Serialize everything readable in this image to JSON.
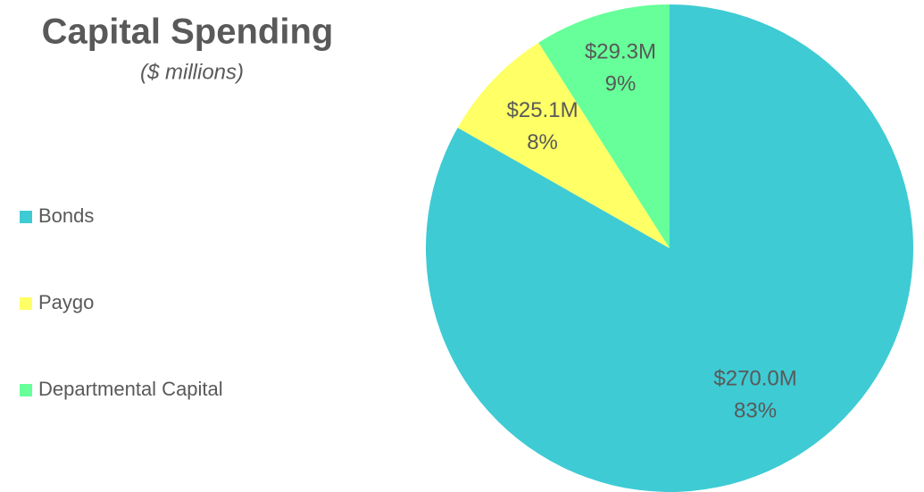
{
  "chart_data": {
    "type": "pie",
    "title": "Capital Spending",
    "subtitle": "($ millions)",
    "categories": [
      "Bonds",
      "Paygo",
      "Departmental Capital"
    ],
    "values": [
      270.0,
      25.1,
      29.3
    ],
    "value_labels": [
      "$270.0M",
      "$25.1M",
      "$29.3M"
    ],
    "percent_labels": [
      "83%",
      "8%",
      "9%"
    ],
    "colors": [
      "#3ecbd4",
      "#ffff66",
      "#66ff99"
    ],
    "legend": "left"
  }
}
